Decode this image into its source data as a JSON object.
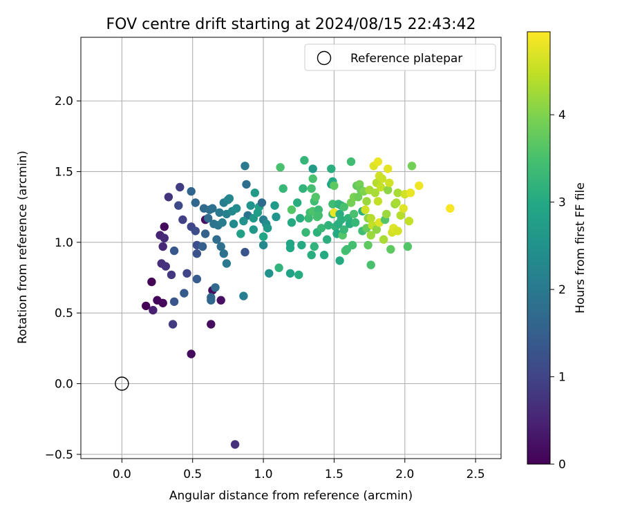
{
  "chart_data": {
    "type": "scatter",
    "title": "FOV centre drift starting at 2024/08/15 22:43:42",
    "xlabel": "Angular distance from reference (arcmin)",
    "ylabel": "Rotation from reference (arcmin)",
    "xlim": [
      -0.29,
      2.68
    ],
    "ylim": [
      -0.53,
      2.45
    ],
    "xticks": [
      "0.0",
      "0.5",
      "1.0",
      "1.5",
      "2.0",
      "2.5"
    ],
    "yticks": [
      "−0.5",
      "0.0",
      "0.5",
      "1.0",
      "1.5",
      "2.0"
    ],
    "grid": true,
    "legend": {
      "position": "top-right",
      "entries": [
        "Reference platepar"
      ]
    },
    "reference_point": {
      "x": 0.0,
      "y": 0.0
    },
    "colorbar": {
      "label": "Hours from first FF file",
      "colormap": "viridis",
      "range": [
        0,
        4.95
      ],
      "ticks": [
        "0",
        "1",
        "2",
        "3",
        "4"
      ]
    },
    "series": [
      {
        "points": [
          [
            0.17,
            0.55,
            0.03
          ],
          [
            0.21,
            0.72,
            0.05
          ],
          [
            0.25,
            0.59,
            0.08
          ],
          [
            0.29,
            0.57,
            0.1
          ],
          [
            0.3,
            1.11,
            0.12
          ],
          [
            0.49,
            0.21,
            0.14
          ],
          [
            0.63,
            0.42,
            0.16
          ],
          [
            0.64,
            0.66,
            0.18
          ],
          [
            0.7,
            0.59,
            0.2
          ],
          [
            0.59,
            1.16,
            0.22
          ],
          [
            0.22,
            0.52,
            0.45
          ],
          [
            0.27,
            1.05,
            0.5
          ],
          [
            0.29,
            0.97,
            0.55
          ],
          [
            0.3,
            1.03,
            0.6
          ],
          [
            0.28,
            0.85,
            0.65
          ],
          [
            0.31,
            0.83,
            0.7
          ],
          [
            0.33,
            1.32,
            0.75
          ],
          [
            0.35,
            0.77,
            0.8
          ],
          [
            0.36,
            0.42,
            0.85
          ],
          [
            0.41,
            1.39,
            0.9
          ],
          [
            0.43,
            1.16,
            0.95
          ],
          [
            0.46,
            0.78,
            1.0
          ],
          [
            0.49,
            1.11,
            1.05
          ],
          [
            0.4,
            1.26,
            1.1
          ],
          [
            0.8,
            -0.43,
            0.7
          ],
          [
            0.52,
            1.08,
            1.15
          ],
          [
            0.53,
            0.98,
            1.2
          ],
          [
            0.53,
            0.92,
            1.25
          ],
          [
            0.37,
            0.58,
            1.3
          ],
          [
            0.37,
            0.94,
            1.35
          ],
          [
            0.44,
            0.64,
            1.4
          ],
          [
            0.53,
            0.74,
            1.45
          ],
          [
            0.57,
            0.97,
            1.5
          ],
          [
            0.59,
            1.06,
            1.55
          ],
          [
            0.63,
            0.61,
            1.6
          ],
          [
            0.63,
            0.59,
            1.65
          ],
          [
            0.66,
            0.68,
            1.7
          ],
          [
            0.67,
            1.02,
            1.75
          ],
          [
            0.7,
            0.97,
            1.8
          ],
          [
            0.72,
            0.92,
            1.85
          ],
          [
            0.49,
            1.36,
            1.6
          ],
          [
            0.52,
            1.28,
            1.65
          ],
          [
            0.58,
            1.24,
            1.7
          ],
          [
            0.61,
            1.17,
            1.75
          ],
          [
            0.62,
            1.23,
            1.8
          ],
          [
            0.64,
            1.24,
            1.85
          ],
          [
            0.65,
            1.13,
            1.9
          ],
          [
            0.68,
            1.12,
            1.95
          ],
          [
            0.69,
            1.21,
            2.0
          ],
          [
            0.71,
            1.14,
            2.05
          ],
          [
            0.72,
            1.28,
            2.1
          ],
          [
            0.74,
            1.2,
            2.15
          ],
          [
            0.75,
            1.3,
            2.2
          ],
          [
            0.76,
            1.31,
            2.25
          ],
          [
            0.78,
            1.22,
            2.3
          ],
          [
            0.79,
            1.13,
            2.35
          ],
          [
            0.81,
            1.24,
            2.4
          ],
          [
            0.74,
            0.85,
            2.0
          ],
          [
            0.86,
            0.62,
            2.1
          ],
          [
            0.87,
            0.93,
            1.3
          ],
          [
            0.87,
            1.54,
            2.0
          ],
          [
            0.88,
            1.41,
            1.8
          ],
          [
            0.89,
            1.19,
            1.9
          ],
          [
            0.86,
            1.15,
            2.5
          ],
          [
            0.91,
            1.26,
            2.55
          ],
          [
            0.93,
            1.09,
            2.6
          ],
          [
            0.93,
            1.17,
            2.65
          ],
          [
            0.94,
            1.35,
            2.7
          ],
          [
            0.96,
            1.21,
            2.75
          ],
          [
            0.97,
            1.25,
            2.8
          ],
          [
            0.99,
            1.28,
            1.7
          ],
          [
            1.0,
            1.16,
            2.1
          ],
          [
            1.0,
            0.98,
            2.3
          ],
          [
            1.02,
            1.13,
            2.4
          ],
          [
            1.03,
            1.1,
            2.6
          ],
          [
            1.04,
            0.78,
            2.5
          ],
          [
            1.08,
            1.26,
            2.7
          ],
          [
            1.09,
            1.18,
            2.55
          ],
          [
            1.0,
            1.04,
            2.9
          ],
          [
            0.84,
            1.06,
            2.8
          ],
          [
            1.11,
            0.82,
            3.2
          ],
          [
            1.12,
            1.53,
            3.5
          ],
          [
            1.14,
            1.38,
            3.3
          ],
          [
            1.19,
            0.99,
            2.9
          ],
          [
            1.19,
            0.96,
            2.95
          ],
          [
            1.19,
            0.78,
            2.85
          ],
          [
            1.2,
            1.14,
            3.0
          ],
          [
            1.2,
            1.23,
            3.6
          ],
          [
            1.24,
            1.28,
            3.1
          ],
          [
            1.25,
            0.77,
            3.05
          ],
          [
            1.26,
            1.17,
            3.1
          ],
          [
            1.27,
            0.98,
            3.0
          ],
          [
            1.28,
            1.38,
            3.2
          ],
          [
            1.29,
            1.58,
            3.25
          ],
          [
            1.3,
            1.07,
            3.3
          ],
          [
            1.32,
            1.17,
            3.35
          ],
          [
            1.33,
            1.21,
            3.4
          ],
          [
            1.34,
            1.38,
            3.45
          ],
          [
            1.35,
            1.45,
            3.5
          ],
          [
            1.35,
            1.22,
            3.55
          ],
          [
            1.34,
            0.91,
            3.1
          ],
          [
            1.35,
            1.52,
            2.7
          ],
          [
            1.36,
            1.29,
            3.4
          ],
          [
            1.36,
            0.97,
            3.2
          ],
          [
            1.37,
            1.32,
            3.6
          ],
          [
            1.38,
            1.18,
            3.5
          ],
          [
            1.38,
            1.07,
            3.15
          ],
          [
            1.39,
            1.23,
            3.35
          ],
          [
            1.39,
            1.19,
            3.45
          ],
          [
            1.41,
            1.1,
            3.3
          ],
          [
            1.43,
            0.91,
            3.0
          ],
          [
            1.45,
            1.02,
            3.1
          ],
          [
            1.46,
            1.12,
            3.2
          ],
          [
            1.48,
            1.52,
            3.1
          ],
          [
            1.48,
            1.41,
            2.9
          ],
          [
            1.49,
            1.43,
            3.0
          ],
          [
            1.49,
            1.27,
            3.4
          ],
          [
            1.49,
            1.2,
            3.3
          ],
          [
            1.5,
            1.4,
            3.7
          ],
          [
            1.5,
            1.21,
            4.8
          ],
          [
            1.51,
            1.11,
            3.2
          ],
          [
            1.52,
            1.06,
            3.0
          ],
          [
            1.53,
            1.13,
            3.1
          ],
          [
            1.53,
            1.27,
            3.25
          ],
          [
            1.54,
            0.87,
            3.0
          ],
          [
            1.54,
            1.2,
            3.1
          ],
          [
            1.55,
            1.16,
            3.15
          ],
          [
            1.55,
            1.26,
            3.2
          ],
          [
            1.56,
            1.05,
            3.6
          ],
          [
            1.57,
            1.25,
            3.5
          ],
          [
            1.57,
            1.09,
            3.3
          ],
          [
            1.58,
            0.94,
            3.5
          ],
          [
            1.59,
            0.95,
            3.4
          ],
          [
            1.6,
            1.17,
            3.2
          ],
          [
            1.61,
            1.13,
            3.1
          ],
          [
            1.62,
            1.57,
            3.4
          ],
          [
            1.62,
            1.28,
            3.9
          ],
          [
            1.63,
            0.98,
            3.45
          ],
          [
            1.64,
            1.32,
            3.95
          ],
          [
            1.64,
            1.2,
            3.5
          ],
          [
            1.65,
            1.14,
            3.3
          ],
          [
            1.66,
            1.4,
            3.75
          ],
          [
            1.67,
            1.32,
            3.85
          ],
          [
            1.68,
            1.41,
            3.9
          ],
          [
            1.69,
            1.37,
            3.8
          ],
          [
            1.7,
            1.22,
            3.1
          ],
          [
            1.7,
            1.08,
            3.4
          ],
          [
            1.71,
            1.36,
            4.0
          ],
          [
            1.72,
            1.23,
            4.6
          ],
          [
            1.73,
            1.29,
            4.2
          ],
          [
            1.73,
            1.1,
            3.8
          ],
          [
            1.74,
            0.98,
            3.7
          ],
          [
            1.74,
            1.17,
            4.1
          ],
          [
            1.75,
            1.37,
            4.3
          ],
          [
            1.76,
            0.84,
            3.5
          ],
          [
            1.76,
            1.17,
            4.4
          ],
          [
            1.76,
            1.05,
            4.2
          ],
          [
            1.77,
            1.12,
            4.5
          ],
          [
            1.78,
            1.54,
            4.7
          ],
          [
            1.79,
            1.35,
            4.3
          ],
          [
            1.8,
            1.42,
            4.4
          ],
          [
            1.8,
            1.09,
            4.1
          ],
          [
            1.81,
            1.29,
            4.5
          ],
          [
            1.81,
            1.57,
            4.8
          ],
          [
            1.82,
            1.14,
            4.7
          ],
          [
            1.82,
            1.47,
            4.6
          ],
          [
            1.83,
            1.39,
            4.5
          ],
          [
            1.84,
            1.45,
            4.55
          ],
          [
            1.85,
            1.02,
            4.3
          ],
          [
            1.86,
            1.16,
            3.6
          ],
          [
            1.87,
            1.2,
            4.2
          ],
          [
            1.88,
            1.37,
            4.1
          ],
          [
            1.88,
            1.52,
            4.75
          ],
          [
            1.89,
            1.42,
            4.6
          ],
          [
            1.9,
            0.95,
            3.7
          ],
          [
            1.91,
            1.07,
            4.6
          ],
          [
            1.92,
            1.1,
            4.7
          ],
          [
            1.93,
            1.27,
            4.2
          ],
          [
            1.94,
            1.28,
            4.3
          ],
          [
            1.95,
            1.35,
            4.3
          ],
          [
            1.95,
            1.08,
            4.65
          ],
          [
            1.97,
            1.19,
            4.4
          ],
          [
            1.99,
            1.24,
            4.7
          ],
          [
            2.0,
            1.34,
            4.6
          ],
          [
            2.02,
            0.97,
            3.6
          ],
          [
            2.03,
            1.15,
            4.5
          ],
          [
            2.04,
            1.35,
            4.8
          ],
          [
            2.05,
            1.54,
            3.9
          ],
          [
            2.1,
            1.4,
            4.85
          ],
          [
            2.32,
            1.24,
            4.9
          ]
        ]
      }
    ]
  }
}
